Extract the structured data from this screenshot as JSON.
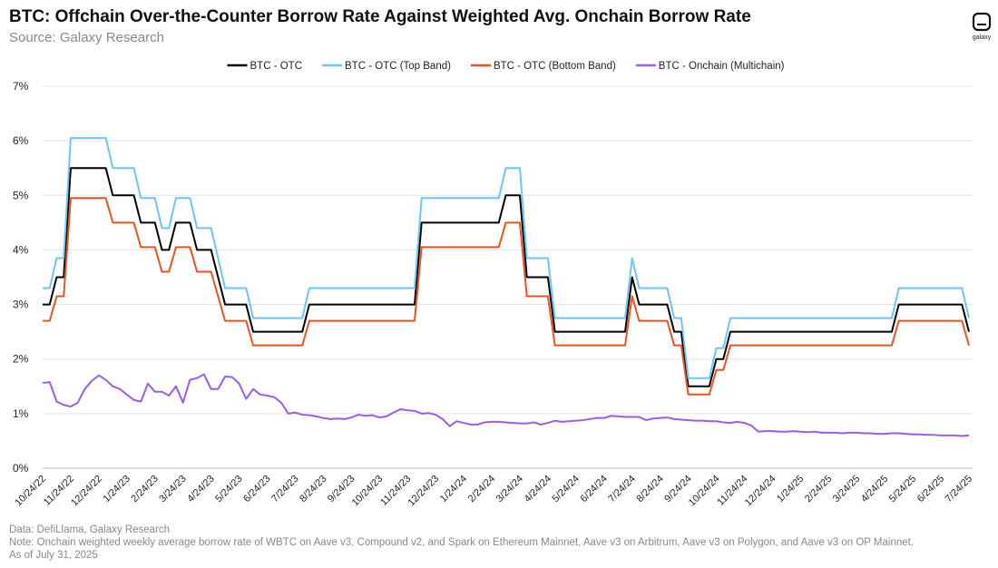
{
  "brand": "galaxy",
  "chart_data": {
    "type": "line",
    "title": "BTC: Offchain Over-the-Counter Borrow Rate Against Weighted Avg. Onchain Borrow Rate",
    "subtitle": "Source: Galaxy Research",
    "notes": [
      "Data: DefiLlama, Galaxy Research",
      "Note: Onchain weighted weekly average borrow rate of WBTC on Aave v3, Compound v2, and Spark on Ethereum Mainnet, Aave v3 on Arbitrum, Aave v3 on Polygon, and Aave v3 on OP Mainnet.",
      "As of July 31, 2025"
    ],
    "legend": "top",
    "grid": true,
    "ylim": [
      0,
      7
    ],
    "yticks": [
      {
        "value": 0,
        "label": "0%"
      },
      {
        "value": 1,
        "label": "1%"
      },
      {
        "value": 2,
        "label": "2%"
      },
      {
        "value": 3,
        "label": "3%"
      },
      {
        "value": 4,
        "label": "4%"
      },
      {
        "value": 5,
        "label": "5%"
      },
      {
        "value": 6,
        "label": "6%"
      },
      {
        "value": 7,
        "label": "7%"
      }
    ],
    "categories": [
      "10/24/22",
      null,
      null,
      null,
      "11/24/22",
      null,
      null,
      null,
      "12/24/22",
      null,
      null,
      null,
      "1/24/23",
      null,
      null,
      null,
      "2/24/23",
      null,
      null,
      null,
      "3/24/23",
      null,
      null,
      null,
      "4/24/23",
      null,
      null,
      null,
      "5/24/23",
      null,
      null,
      null,
      "6/24/23",
      null,
      null,
      null,
      "7/24/23",
      null,
      null,
      null,
      "8/24/23",
      null,
      null,
      null,
      "9/24/23",
      null,
      null,
      null,
      "10/24/23",
      null,
      null,
      null,
      "11/24/23",
      null,
      null,
      null,
      "12/24/23",
      null,
      null,
      null,
      "1/24/24",
      null,
      null,
      null,
      "2/24/24",
      null,
      null,
      null,
      "3/24/24",
      null,
      null,
      null,
      "4/24/24",
      null,
      null,
      null,
      "5/24/24",
      null,
      null,
      null,
      "6/24/24",
      null,
      null,
      null,
      "7/24/24",
      null,
      null,
      null,
      "8/24/24",
      null,
      null,
      null,
      "9/24/24",
      null,
      null,
      null,
      "10/24/24",
      null,
      null,
      null,
      "11/24/24",
      null,
      null,
      null,
      "12/24/24",
      null,
      null,
      null,
      "1/24/25",
      null,
      null,
      null,
      "2/24/25",
      null,
      null,
      null,
      "3/24/25",
      null,
      null,
      null,
      "4/24/25",
      null,
      null,
      null,
      "5/24/25",
      null,
      null,
      null,
      "6/24/25",
      null,
      null,
      null,
      "7/24/25"
    ],
    "series": [
      {
        "name": "BTC - OTC",
        "color": "#000000",
        "values": [
          3,
          3,
          3.5,
          3.5,
          5.5,
          5.5,
          5.5,
          5.5,
          5.5,
          5.5,
          5,
          5,
          5,
          5,
          4.5,
          4.5,
          4.5,
          4,
          4,
          4.5,
          4.5,
          4.5,
          4,
          4,
          4,
          3.5,
          3,
          3,
          3,
          3,
          2.5,
          2.5,
          2.5,
          2.5,
          2.5,
          2.5,
          2.5,
          2.5,
          3,
          3,
          3,
          3,
          3,
          3,
          3,
          3,
          3,
          3,
          3,
          3,
          3,
          3,
          3,
          3,
          4.5,
          4.5,
          4.5,
          4.5,
          4.5,
          4.5,
          4.5,
          4.5,
          4.5,
          4.5,
          4.5,
          4.5,
          5,
          5,
          5,
          3.5,
          3.5,
          3.5,
          3.5,
          2.5,
          2.5,
          2.5,
          2.5,
          2.5,
          2.5,
          2.5,
          2.5,
          2.5,
          2.5,
          2.5,
          3.5,
          3,
          3,
          3,
          3,
          3,
          2.5,
          2.5,
          1.5,
          1.5,
          1.5,
          1.5,
          2,
          2,
          2.5,
          2.5,
          2.5,
          2.5,
          2.5,
          2.5,
          2.5,
          2.5,
          2.5,
          2.5,
          2.5,
          2.5,
          2.5,
          2.5,
          2.5,
          2.5,
          2.5,
          2.5,
          2.5,
          2.5,
          2.5,
          2.5,
          2.5,
          2.5,
          3,
          3,
          3,
          3,
          3,
          3,
          3,
          3,
          3,
          3,
          2.5
        ]
      },
      {
        "name": "BTC - OTC (Top Band)",
        "color": "#6ec6f0",
        "values": [
          3.3,
          3.3,
          3.85,
          3.85,
          6.05,
          6.05,
          6.05,
          6.05,
          6.05,
          6.05,
          5.5,
          5.5,
          5.5,
          5.5,
          4.95,
          4.95,
          4.95,
          4.4,
          4.4,
          4.95,
          4.95,
          4.95,
          4.4,
          4.4,
          4.4,
          3.85,
          3.3,
          3.3,
          3.3,
          3.3,
          2.75,
          2.75,
          2.75,
          2.75,
          2.75,
          2.75,
          2.75,
          2.75,
          3.3,
          3.3,
          3.3,
          3.3,
          3.3,
          3.3,
          3.3,
          3.3,
          3.3,
          3.3,
          3.3,
          3.3,
          3.3,
          3.3,
          3.3,
          3.3,
          4.95,
          4.95,
          4.95,
          4.95,
          4.95,
          4.95,
          4.95,
          4.95,
          4.95,
          4.95,
          4.95,
          4.95,
          5.5,
          5.5,
          5.5,
          3.85,
          3.85,
          3.85,
          3.85,
          2.75,
          2.75,
          2.75,
          2.75,
          2.75,
          2.75,
          2.75,
          2.75,
          2.75,
          2.75,
          2.75,
          3.85,
          3.3,
          3.3,
          3.3,
          3.3,
          3.3,
          2.75,
          2.75,
          1.65,
          1.65,
          1.65,
          1.65,
          2.2,
          2.2,
          2.75,
          2.75,
          2.75,
          2.75,
          2.75,
          2.75,
          2.75,
          2.75,
          2.75,
          2.75,
          2.75,
          2.75,
          2.75,
          2.75,
          2.75,
          2.75,
          2.75,
          2.75,
          2.75,
          2.75,
          2.75,
          2.75,
          2.75,
          2.75,
          3.3,
          3.3,
          3.3,
          3.3,
          3.3,
          3.3,
          3.3,
          3.3,
          3.3,
          3.3,
          2.75
        ]
      },
      {
        "name": "BTC - OTC (Bottom Band)",
        "color": "#e8541e",
        "values": [
          2.7,
          2.7,
          3.15,
          3.15,
          4.95,
          4.95,
          4.95,
          4.95,
          4.95,
          4.95,
          4.5,
          4.5,
          4.5,
          4.5,
          4.05,
          4.05,
          4.05,
          3.6,
          3.6,
          4.05,
          4.05,
          4.05,
          3.6,
          3.6,
          3.6,
          3.15,
          2.7,
          2.7,
          2.7,
          2.7,
          2.25,
          2.25,
          2.25,
          2.25,
          2.25,
          2.25,
          2.25,
          2.25,
          2.7,
          2.7,
          2.7,
          2.7,
          2.7,
          2.7,
          2.7,
          2.7,
          2.7,
          2.7,
          2.7,
          2.7,
          2.7,
          2.7,
          2.7,
          2.7,
          4.05,
          4.05,
          4.05,
          4.05,
          4.05,
          4.05,
          4.05,
          4.05,
          4.05,
          4.05,
          4.05,
          4.05,
          4.5,
          4.5,
          4.5,
          3.15,
          3.15,
          3.15,
          3.15,
          2.25,
          2.25,
          2.25,
          2.25,
          2.25,
          2.25,
          2.25,
          2.25,
          2.25,
          2.25,
          2.25,
          3.15,
          2.7,
          2.7,
          2.7,
          2.7,
          2.7,
          2.25,
          2.25,
          1.35,
          1.35,
          1.35,
          1.35,
          1.8,
          1.8,
          2.25,
          2.25,
          2.25,
          2.25,
          2.25,
          2.25,
          2.25,
          2.25,
          2.25,
          2.25,
          2.25,
          2.25,
          2.25,
          2.25,
          2.25,
          2.25,
          2.25,
          2.25,
          2.25,
          2.25,
          2.25,
          2.25,
          2.25,
          2.25,
          2.7,
          2.7,
          2.7,
          2.7,
          2.7,
          2.7,
          2.7,
          2.7,
          2.7,
          2.7,
          2.25
        ]
      },
      {
        "name": "BTC - Onchain (Multichain)",
        "color": "#9b5de5",
        "values": [
          1.56,
          1.58,
          1.22,
          1.16,
          1.13,
          1.2,
          1.45,
          1.6,
          1.7,
          1.62,
          1.5,
          1.45,
          1.35,
          1.25,
          1.22,
          1.55,
          1.4,
          1.4,
          1.33,
          1.5,
          1.2,
          1.62,
          1.65,
          1.72,
          1.45,
          1.45,
          1.68,
          1.67,
          1.55,
          1.27,
          1.45,
          1.35,
          1.33,
          1.3,
          1.2,
          1.0,
          1.02,
          0.98,
          0.97,
          0.95,
          0.92,
          0.9,
          0.91,
          0.9,
          0.93,
          0.98,
          0.96,
          0.97,
          0.93,
          0.95,
          1.02,
          1.08,
          1.06,
          1.05,
          1.0,
          1.01,
          0.98,
          0.9,
          0.77,
          0.86,
          0.83,
          0.8,
          0.8,
          0.84,
          0.85,
          0.85,
          0.84,
          0.83,
          0.82,
          0.82,
          0.84,
          0.8,
          0.83,
          0.87,
          0.85,
          0.86,
          0.87,
          0.88,
          0.9,
          0.92,
          0.92,
          0.96,
          0.95,
          0.94,
          0.94,
          0.94,
          0.88,
          0.91,
          0.92,
          0.93,
          0.9,
          0.89,
          0.88,
          0.87,
          0.87,
          0.86,
          0.86,
          0.84,
          0.83,
          0.85,
          0.83,
          0.78,
          0.67,
          0.68,
          0.68,
          0.67,
          0.67,
          0.68,
          0.67,
          0.66,
          0.67,
          0.65,
          0.65,
          0.65,
          0.64,
          0.65,
          0.65,
          0.64,
          0.64,
          0.63,
          0.63,
          0.64,
          0.64,
          0.63,
          0.62,
          0.62,
          0.61,
          0.61,
          0.6,
          0.6,
          0.6,
          0.59,
          0.6
        ]
      }
    ]
  }
}
